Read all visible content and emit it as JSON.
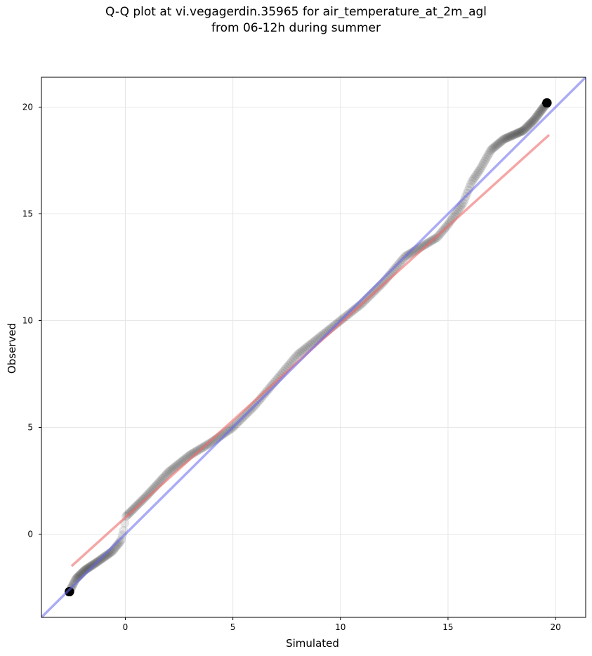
{
  "title_line1": "Q-Q plot at vi.vegagerdin.35965 for air_temperature_at_2m_agl",
  "title_line2": "from 06-12h during summer",
  "chart_data": {
    "type": "scatter",
    "title": "Q-Q plot at vi.vegagerdin.35965 for air_temperature_at_2m_agl\nfrom 06-12h during summer",
    "xlabel": "Simulated",
    "ylabel": "Observed",
    "xlim": [
      -3.9,
      21.4
    ],
    "ylim": [
      -3.9,
      21.4
    ],
    "xticks": [
      0,
      5,
      10,
      15,
      20
    ],
    "yticks": [
      0,
      5,
      10,
      15,
      20
    ],
    "grid": true,
    "colors": {
      "points": "#000000",
      "fit_line": "#f06a6a",
      "identity_line": "#6666ee"
    },
    "series": [
      {
        "type": "scatter",
        "anchors_x": [
          -2.6,
          -2.3,
          -1.9,
          -1.3,
          -0.6,
          -0.2,
          -0.05,
          0,
          0.3,
          1,
          2,
          3,
          4,
          5,
          6,
          7,
          8,
          9,
          10,
          11,
          12,
          13,
          14,
          14.5,
          15,
          15.7,
          16.1,
          16.5,
          17,
          17.6,
          18.5,
          19,
          19.6
        ],
        "anchors_y": [
          -2.7,
          -2.1,
          -1.7,
          -1.3,
          -0.8,
          -0.3,
          0.3,
          0.8,
          1.1,
          1.8,
          2.9,
          3.7,
          4.3,
          5.0,
          6.0,
          7.2,
          8.4,
          9.2,
          10.0,
          10.8,
          11.8,
          13.0,
          13.6,
          13.9,
          14.5,
          15.5,
          16.5,
          17.1,
          18.0,
          18.5,
          18.9,
          19.4,
          20.2
        ],
        "n_points": 600
      },
      {
        "type": "line",
        "x": [
          -2.5,
          19.7
        ],
        "y": [
          -1.5,
          18.7
        ]
      },
      {
        "type": "line",
        "x": [
          -3.9,
          21.4
        ],
        "y": [
          -3.9,
          21.4
        ]
      }
    ]
  }
}
